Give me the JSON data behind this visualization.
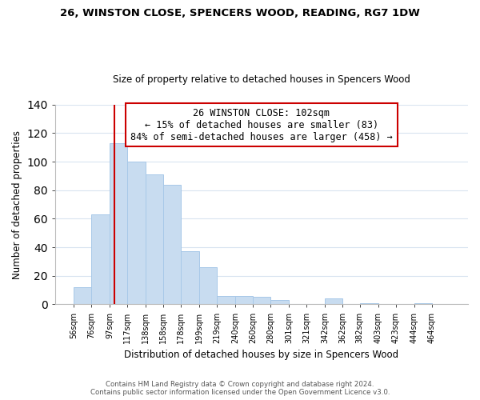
{
  "title": "26, WINSTON CLOSE, SPENCERS WOOD, READING, RG7 1DW",
  "subtitle": "Size of property relative to detached houses in Spencers Wood",
  "xlabel": "Distribution of detached houses by size in Spencers Wood",
  "ylabel": "Number of detached properties",
  "bar_color": "#c8dcf0",
  "bar_edge_color": "#a8c8e8",
  "bin_labels": [
    "56sqm",
    "76sqm",
    "97sqm",
    "117sqm",
    "138sqm",
    "158sqm",
    "178sqm",
    "199sqm",
    "219sqm",
    "240sqm",
    "260sqm",
    "280sqm",
    "301sqm",
    "321sqm",
    "342sqm",
    "362sqm",
    "382sqm",
    "403sqm",
    "423sqm",
    "444sqm",
    "464sqm"
  ],
  "bin_edges": [
    56,
    76,
    97,
    117,
    138,
    158,
    178,
    199,
    219,
    240,
    260,
    280,
    301,
    321,
    342,
    362,
    382,
    403,
    423,
    444,
    464
  ],
  "bar_heights": [
    12,
    63,
    113,
    100,
    91,
    84,
    37,
    26,
    6,
    6,
    5,
    3,
    0,
    0,
    4,
    0,
    1,
    0,
    0,
    1,
    0
  ],
  "ylim": [
    0,
    140
  ],
  "yticks": [
    0,
    20,
    40,
    60,
    80,
    100,
    120,
    140
  ],
  "vline_x": 102,
  "vline_color": "#cc0000",
  "annotation_line1": "26 WINSTON CLOSE: 102sqm",
  "annotation_line2": "← 15% of detached houses are smaller (83)",
  "annotation_line3": "84% of semi-detached houses are larger (458) →",
  "annotation_box_color": "#ffffff",
  "annotation_box_edge": "#cc0000",
  "footer_line1": "Contains HM Land Registry data © Crown copyright and database right 2024.",
  "footer_line2": "Contains public sector information licensed under the Open Government Licence v3.0.",
  "background_color": "#ffffff",
  "grid_color": "#d8e4f0"
}
